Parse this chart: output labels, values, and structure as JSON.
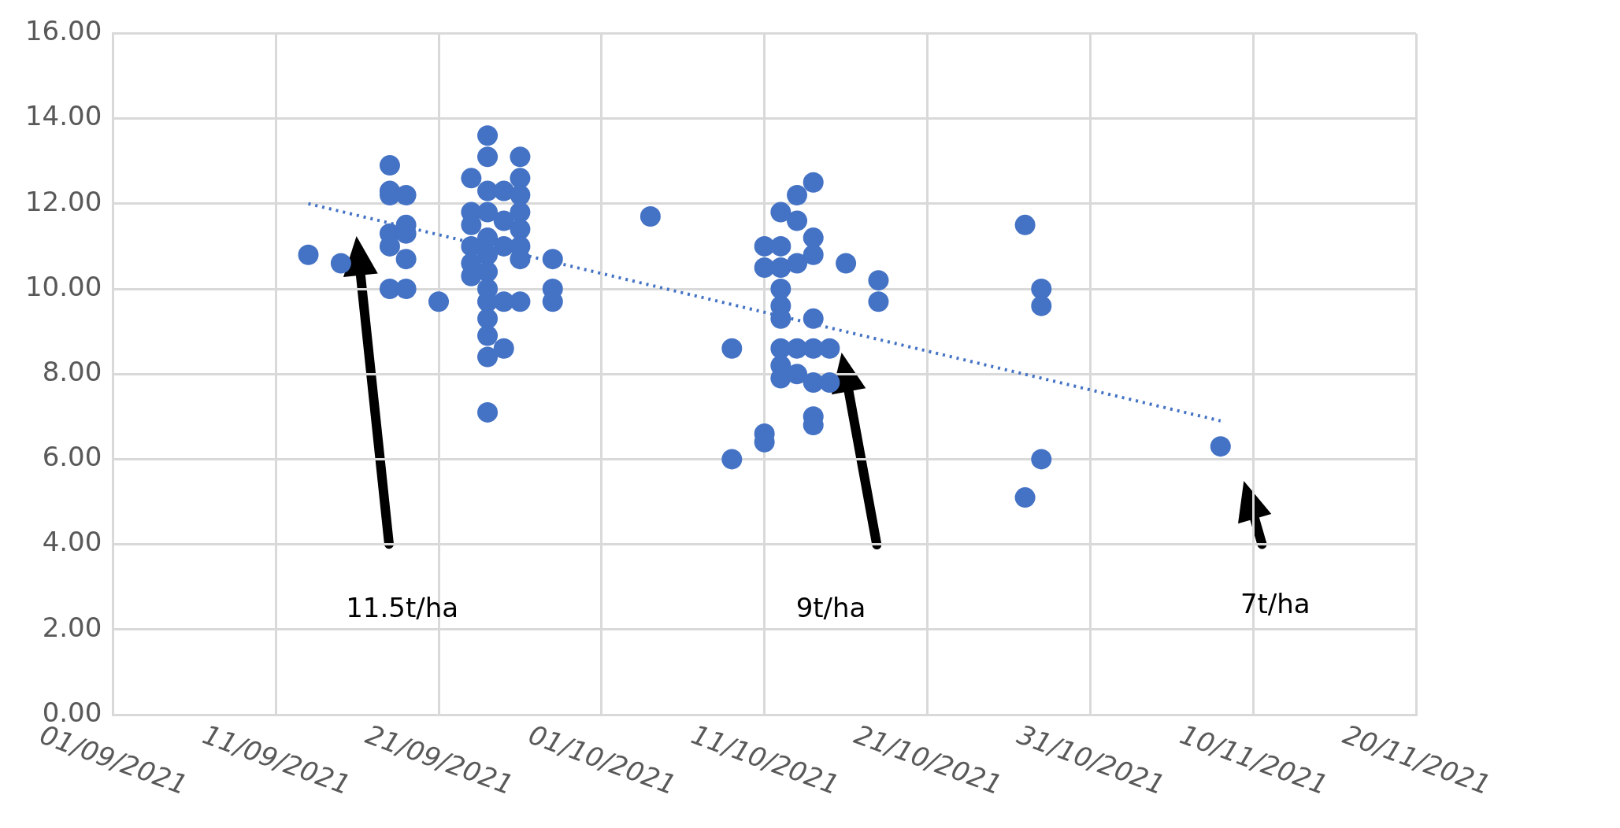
{
  "chart_data": {
    "type": "scatter",
    "series": [
      {
        "color": "#4472c4",
        "x": [
          "2021-09-13",
          "2021-09-15",
          "2021-09-18",
          "2021-09-18",
          "2021-09-18",
          "2021-09-18",
          "2021-09-18",
          "2021-09-18",
          "2021-09-19",
          "2021-09-19",
          "2021-09-19",
          "2021-09-19",
          "2021-09-19",
          "2021-09-21",
          "2021-09-23",
          "2021-09-23",
          "2021-09-23",
          "2021-09-23",
          "2021-09-23",
          "2021-09-23",
          "2021-09-24",
          "2021-09-24",
          "2021-09-24",
          "2021-09-24",
          "2021-09-24",
          "2021-09-24",
          "2021-09-24",
          "2021-09-24",
          "2021-09-24",
          "2021-09-24",
          "2021-09-24",
          "2021-09-24",
          "2021-09-24",
          "2021-09-25",
          "2021-09-25",
          "2021-09-25",
          "2021-09-25",
          "2021-09-25",
          "2021-09-26",
          "2021-09-26",
          "2021-09-26",
          "2021-09-26",
          "2021-09-26",
          "2021-09-26",
          "2021-09-26",
          "2021-09-26",
          "2021-09-28",
          "2021-09-28",
          "2021-09-28",
          "2021-10-04",
          "2021-10-09",
          "2021-10-09",
          "2021-10-11",
          "2021-10-11",
          "2021-10-11",
          "2021-10-11",
          "2021-10-12",
          "2021-10-12",
          "2021-10-12",
          "2021-10-12",
          "2021-10-12",
          "2021-10-12",
          "2021-10-12",
          "2021-10-12",
          "2021-10-12",
          "2021-10-13",
          "2021-10-13",
          "2021-10-13",
          "2021-10-13",
          "2021-10-13",
          "2021-10-14",
          "2021-10-14",
          "2021-10-14",
          "2021-10-14",
          "2021-10-14",
          "2021-10-14",
          "2021-10-14",
          "2021-10-14",
          "2021-10-15",
          "2021-10-15",
          "2021-10-16",
          "2021-10-18",
          "2021-10-18",
          "2021-10-27",
          "2021-10-27",
          "2021-10-28",
          "2021-10-28",
          "2021-10-28",
          "2021-11-08"
        ],
        "values": [
          10.8,
          10.6,
          12.9,
          12.3,
          12.2,
          11.3,
          11.0,
          10.0,
          12.2,
          11.5,
          11.3,
          10.7,
          10.0,
          9.7,
          12.6,
          11.8,
          11.5,
          11.0,
          10.6,
          10.3,
          13.6,
          13.1,
          12.3,
          11.8,
          11.2,
          10.8,
          10.4,
          10.0,
          9.7,
          9.3,
          8.9,
          8.4,
          7.1,
          12.3,
          11.6,
          11.0,
          9.7,
          8.6,
          13.1,
          12.6,
          12.2,
          11.8,
          11.4,
          11.0,
          10.7,
          9.7,
          10.7,
          10.0,
          9.7,
          11.7,
          8.6,
          6.0,
          11.0,
          10.5,
          6.6,
          6.4,
          11.8,
          11.0,
          10.5,
          10.0,
          9.6,
          9.3,
          8.6,
          8.2,
          7.9,
          12.2,
          11.6,
          10.6,
          8.6,
          8.0,
          12.5,
          11.2,
          10.8,
          9.3,
          8.6,
          7.8,
          7.0,
          6.8,
          8.6,
          7.8,
          10.6,
          10.2,
          9.7,
          11.5,
          5.1,
          10.0,
          9.6,
          6.0,
          6.3
        ]
      },
      {
        "type": "line",
        "color": "#4472c4",
        "line_style": "dotted",
        "marker": "none",
        "x": [
          "2021-09-13",
          "2021-11-08"
        ],
        "values": [
          12.0,
          6.9
        ]
      }
    ],
    "xlim": [
      "2021-09-01",
      "2021-11-20"
    ],
    "xticks": [
      {
        "value": "2021-09-01",
        "label": "01/09/2021"
      },
      {
        "value": "2021-09-11",
        "label": "11/09/2021"
      },
      {
        "value": "2021-09-21",
        "label": "21/09/2021"
      },
      {
        "value": "2021-10-01",
        "label": "01/10/2021"
      },
      {
        "value": "2021-10-11",
        "label": "11/10/2021"
      },
      {
        "value": "2021-10-21",
        "label": "21/10/2021"
      },
      {
        "value": "2021-10-31",
        "label": "31/10/2021"
      },
      {
        "value": "2021-11-10",
        "label": "10/11/2021"
      },
      {
        "value": "2021-11-20",
        "label": "20/11/2021"
      }
    ],
    "ylim": [
      0,
      16
    ],
    "yticks": [
      {
        "value": 0,
        "label": "0.00"
      },
      {
        "value": 2,
        "label": "2.00"
      },
      {
        "value": 4,
        "label": "4.00"
      },
      {
        "value": 6,
        "label": "6.00"
      },
      {
        "value": 8,
        "label": "8.00"
      },
      {
        "value": 10,
        "label": "10.00"
      },
      {
        "value": 12,
        "label": "12.00"
      },
      {
        "value": 14,
        "label": "14.00"
      },
      {
        "value": 16,
        "label": "16.00"
      }
    ],
    "grid": true,
    "legend": false,
    "marker": "circle",
    "annotations": [
      "11.5t/ha",
      "9t/ha",
      "7t/ha"
    ]
  }
}
